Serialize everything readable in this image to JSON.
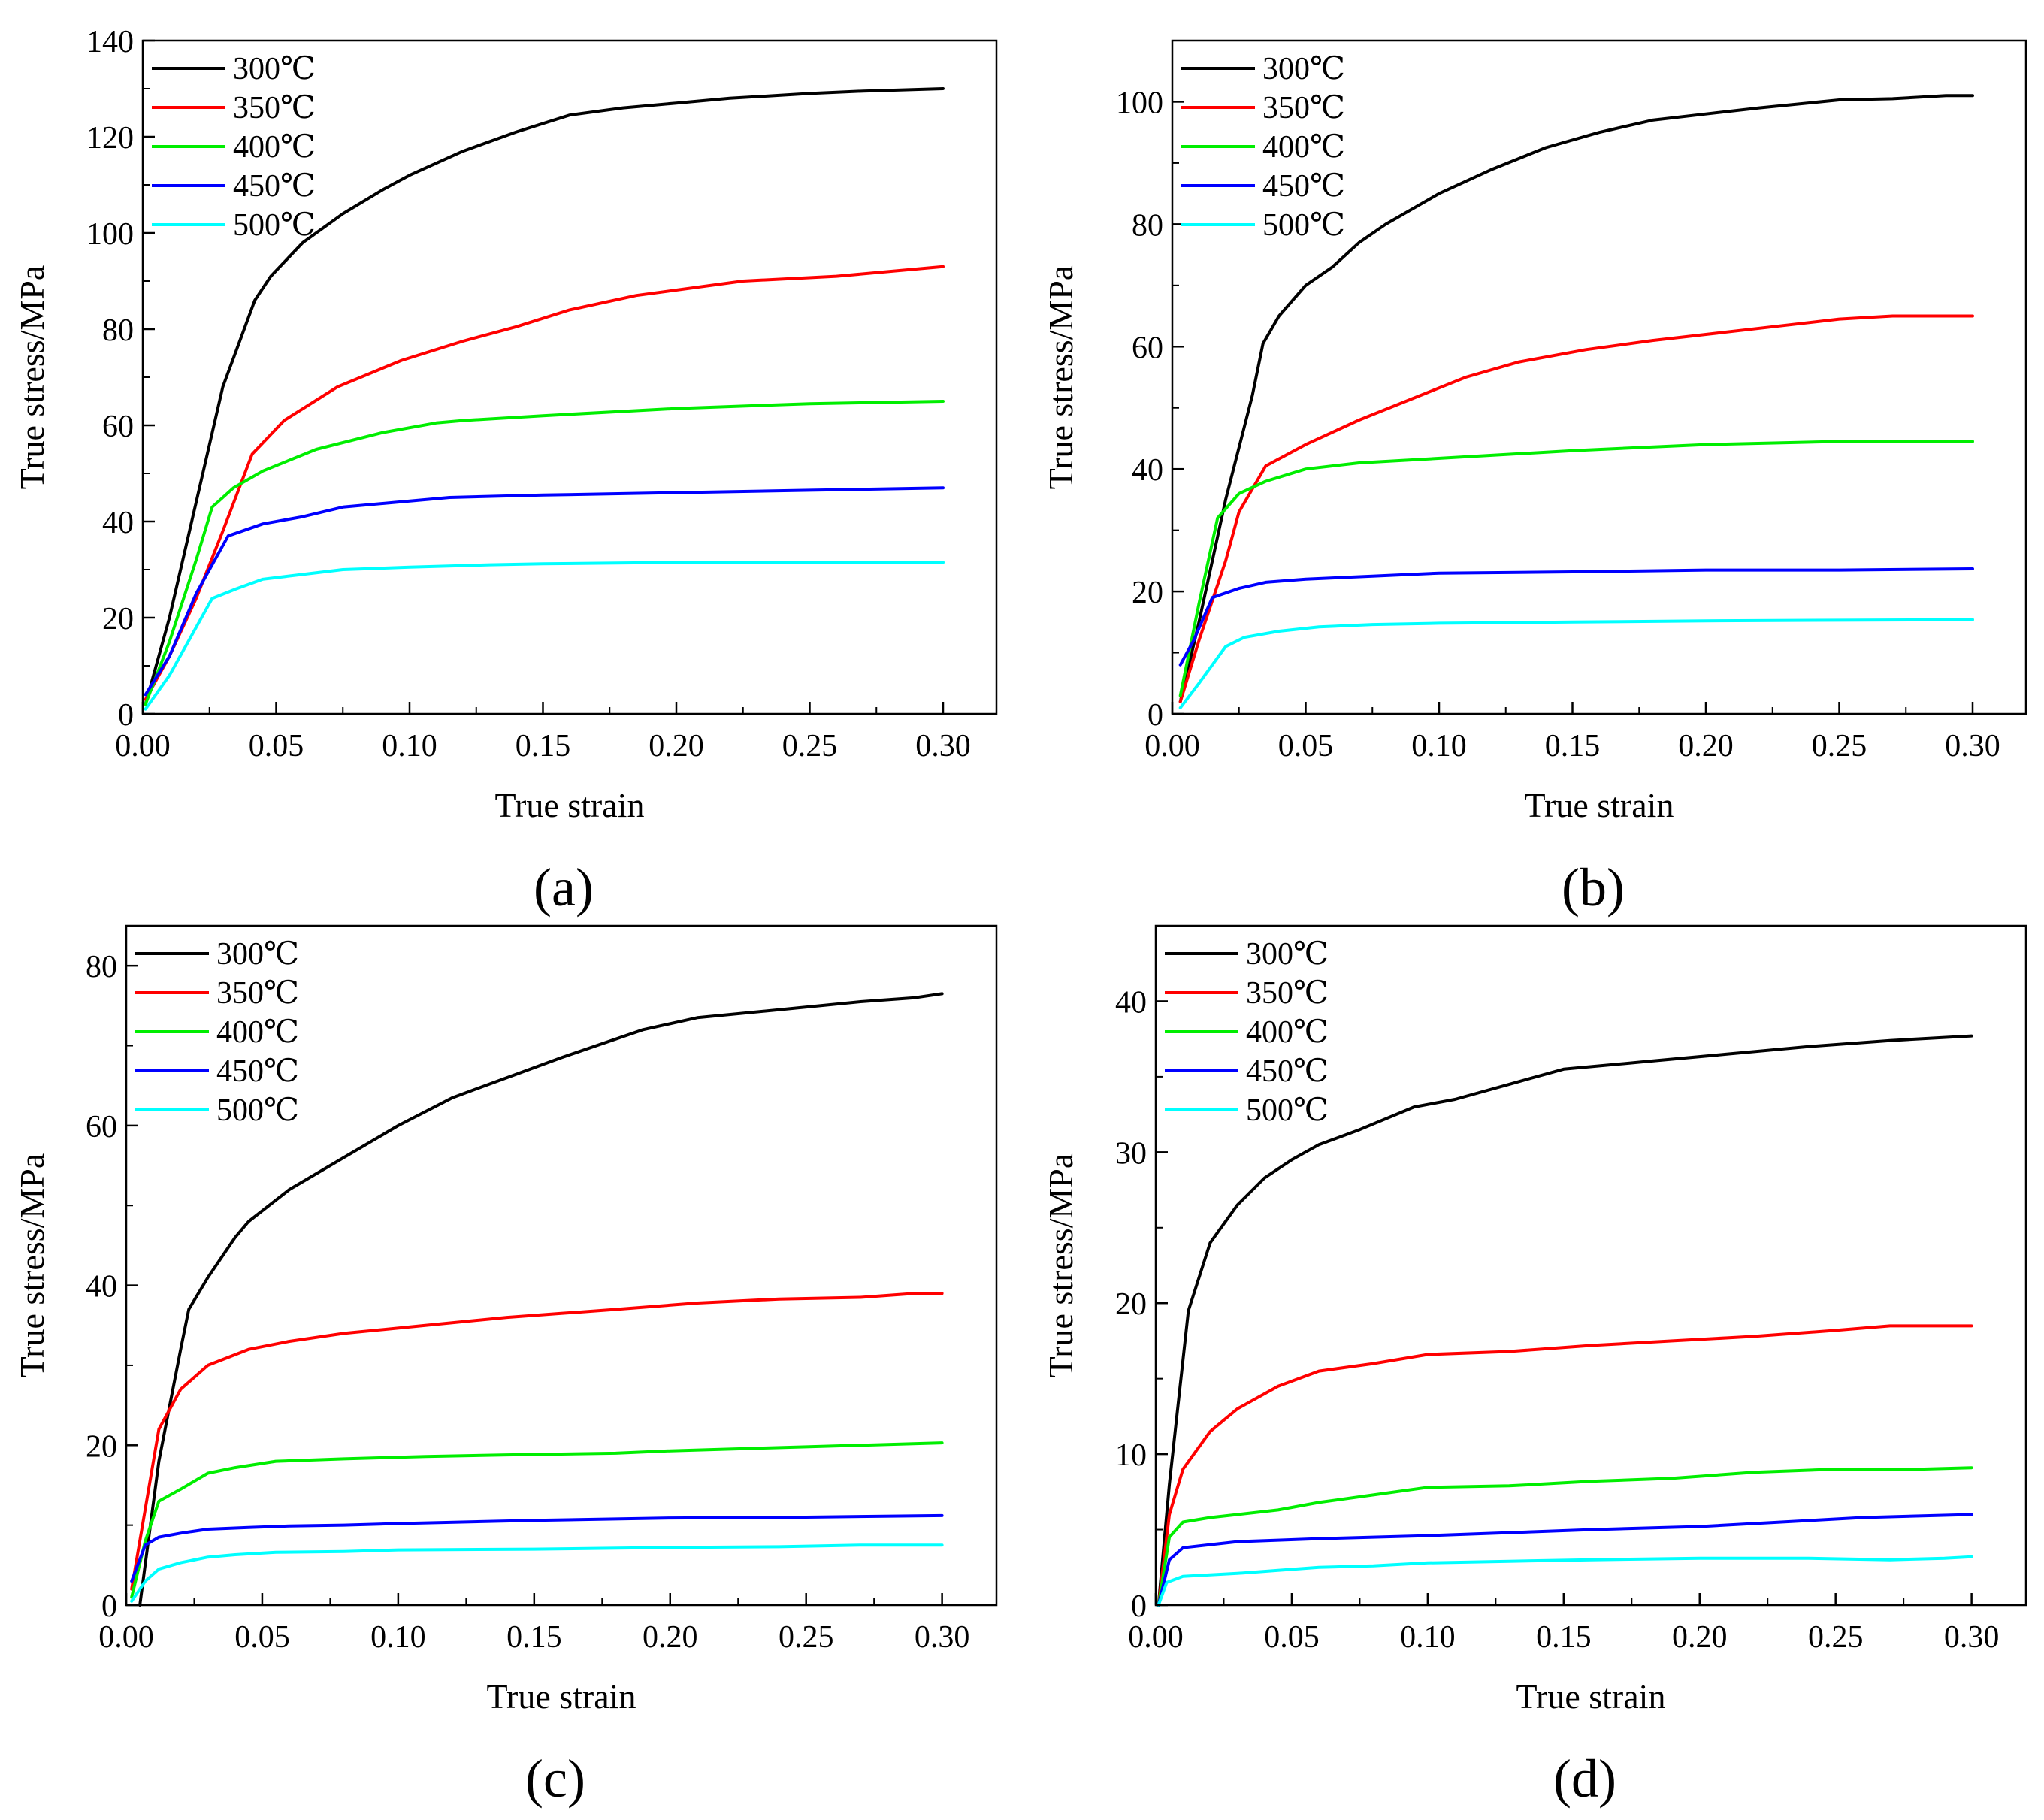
{
  "figure": {
    "series_colors": [
      "#000000",
      "#ff0000",
      "#00ee00",
      "#0000ff",
      "#00ffff"
    ]
  },
  "chart_data": [
    {
      "type": "line",
      "panel_label": "(a)",
      "xlabel": "True strain",
      "ylabel": "True stress/MPa",
      "xlim": [
        0,
        0.32
      ],
      "ylim": [
        0,
        140
      ],
      "xticks": [
        0,
        0.05,
        0.1,
        0.15,
        0.2,
        0.25,
        0.3
      ],
      "xtick_labels": [
        "0.00",
        "0.05",
        "0.10",
        "0.15",
        "0.20",
        "0.25",
        "0.30"
      ],
      "yticks": [
        0,
        20,
        40,
        60,
        80,
        100,
        120,
        140
      ],
      "ytick_labels": [
        "0",
        "20",
        "40",
        "60",
        "80",
        "100",
        "120",
        "140"
      ],
      "legend_position": "top-left",
      "series": [
        {
          "name": "300℃",
          "x": [
            0.001,
            0.01,
            0.02,
            0.03,
            0.038,
            0.042,
            0.048,
            0.06,
            0.075,
            0.09,
            0.1,
            0.12,
            0.14,
            0.16,
            0.18,
            0.2,
            0.22,
            0.25,
            0.27,
            0.3
          ],
          "y": [
            2,
            20,
            44,
            68,
            80,
            86,
            91,
            98,
            104,
            109,
            112,
            117,
            121,
            124.5,
            126,
            127,
            128,
            129,
            129.5,
            130
          ]
        },
        {
          "name": "350℃",
          "x": [
            0.001,
            0.01,
            0.02,
            0.03,
            0.041,
            0.053,
            0.073,
            0.097,
            0.12,
            0.14,
            0.16,
            0.185,
            0.225,
            0.26,
            0.3
          ],
          "y": [
            3,
            12,
            24,
            38,
            54,
            61,
            68,
            73.5,
            77.5,
            80.5,
            84,
            87,
            90,
            91,
            93
          ]
        },
        {
          "name": "400℃",
          "x": [
            0.001,
            0.01,
            0.02,
            0.026,
            0.034,
            0.045,
            0.065,
            0.09,
            0.11,
            0.12,
            0.15,
            0.2,
            0.25,
            0.3
          ],
          "y": [
            2,
            15,
            32,
            43,
            47,
            50.5,
            55,
            58.5,
            60.5,
            61,
            62,
            63.5,
            64.5,
            65
          ]
        },
        {
          "name": "450℃",
          "x": [
            0.001,
            0.01,
            0.02,
            0.032,
            0.045,
            0.06,
            0.075,
            0.095,
            0.115,
            0.15,
            0.2,
            0.25,
            0.3
          ],
          "y": [
            4,
            12,
            25,
            37,
            39.5,
            41,
            43,
            44,
            45,
            45.5,
            46,
            46.5,
            47
          ]
        },
        {
          "name": "500℃",
          "x": [
            0.001,
            0.01,
            0.02,
            0.026,
            0.035,
            0.045,
            0.06,
            0.075,
            0.1,
            0.13,
            0.15,
            0.2,
            0.25,
            0.3
          ],
          "y": [
            1,
            8,
            18,
            24,
            26,
            28,
            29,
            30,
            30.5,
            31,
            31.2,
            31.5,
            31.5,
            31.5
          ]
        }
      ]
    },
    {
      "type": "line",
      "panel_label": "(b)",
      "xlabel": "True strain",
      "ylabel": "True stress/MPa",
      "xlim": [
        0,
        0.32
      ],
      "ylim": [
        0,
        110
      ],
      "xticks": [
        0,
        0.05,
        0.1,
        0.15,
        0.2,
        0.25,
        0.3
      ],
      "xtick_labels": [
        "0.00",
        "0.05",
        "0.10",
        "0.15",
        "0.20",
        "0.25",
        "0.30"
      ],
      "yticks": [
        0,
        20,
        40,
        60,
        80,
        100
      ],
      "ytick_labels": [
        "0",
        "20",
        "40",
        "60",
        "80",
        "100"
      ],
      "legend_position": "top-left",
      "series": [
        {
          "name": "300℃",
          "x": [
            0.003,
            0.01,
            0.02,
            0.03,
            0.034,
            0.04,
            0.05,
            0.06,
            0.07,
            0.08,
            0.1,
            0.12,
            0.14,
            0.16,
            0.18,
            0.2,
            0.22,
            0.25,
            0.27,
            0.29,
            0.3
          ],
          "y": [
            2,
            15,
            35,
            52,
            60.5,
            65,
            70,
            73,
            77,
            80,
            85,
            89,
            92.5,
            95,
            97,
            98,
            99,
            100.3,
            100.5,
            101,
            101
          ]
        },
        {
          "name": "350℃",
          "x": [
            0.003,
            0.01,
            0.02,
            0.025,
            0.035,
            0.05,
            0.07,
            0.09,
            0.11,
            0.13,
            0.155,
            0.18,
            0.2,
            0.23,
            0.25,
            0.27,
            0.3
          ],
          "y": [
            2,
            12,
            25,
            33,
            40.5,
            44,
            48,
            51.5,
            55,
            57.5,
            59.5,
            61,
            62,
            63.5,
            64.5,
            65,
            65
          ]
        },
        {
          "name": "400℃",
          "x": [
            0.003,
            0.01,
            0.017,
            0.025,
            0.035,
            0.05,
            0.07,
            0.09,
            0.11,
            0.15,
            0.2,
            0.25,
            0.29,
            0.3
          ],
          "y": [
            3,
            18,
            32,
            36,
            38,
            40,
            41,
            41.5,
            42,
            43,
            44,
            44.5,
            44.5,
            44.5
          ]
        },
        {
          "name": "450℃",
          "x": [
            0.003,
            0.008,
            0.015,
            0.025,
            0.035,
            0.05,
            0.075,
            0.1,
            0.15,
            0.2,
            0.25,
            0.3
          ],
          "y": [
            8,
            12,
            19,
            20.5,
            21.5,
            22,
            22.5,
            23,
            23.2,
            23.5,
            23.5,
            23.7
          ]
        },
        {
          "name": "500℃",
          "x": [
            0.003,
            0.01,
            0.02,
            0.027,
            0.04,
            0.055,
            0.075,
            0.1,
            0.15,
            0.2,
            0.25,
            0.3
          ],
          "y": [
            1,
            5,
            11,
            12.5,
            13.5,
            14.2,
            14.6,
            14.8,
            15,
            15.2,
            15.3,
            15.4
          ]
        }
      ]
    },
    {
      "type": "line",
      "panel_label": "(c)",
      "xlabel": "True strain",
      "ylabel": "True stress/MPa",
      "xlim": [
        0,
        0.32
      ],
      "ylim": [
        0,
        85
      ],
      "xticks": [
        0,
        0.05,
        0.1,
        0.15,
        0.2,
        0.25,
        0.3
      ],
      "xtick_labels": [
        "0.00",
        "0.05",
        "0.10",
        "0.15",
        "0.20",
        "0.25",
        "0.30"
      ],
      "yticks": [
        0,
        20,
        40,
        60,
        80
      ],
      "ytick_labels": [
        "0",
        "20",
        "40",
        "60",
        "80"
      ],
      "legend_position": "top-left",
      "series": [
        {
          "name": "300℃",
          "x": [
            0.005,
            0.012,
            0.02,
            0.023,
            0.03,
            0.04,
            0.045,
            0.06,
            0.08,
            0.1,
            0.12,
            0.14,
            0.16,
            0.19,
            0.21,
            0.24,
            0.27,
            0.29,
            0.3
          ],
          "y": [
            0,
            18,
            32,
            37,
            41,
            46,
            48,
            52,
            56,
            60,
            63.5,
            66,
            68.5,
            72,
            73.5,
            74.5,
            75.5,
            76,
            76.5
          ]
        },
        {
          "name": "350℃",
          "x": [
            0.002,
            0.008,
            0.012,
            0.02,
            0.03,
            0.045,
            0.06,
            0.08,
            0.11,
            0.14,
            0.16,
            0.18,
            0.21,
            0.24,
            0.27,
            0.29,
            0.3
          ],
          "y": [
            2,
            14,
            22,
            27,
            30,
            32,
            33,
            34,
            35,
            36,
            36.5,
            37,
            37.8,
            38.3,
            38.5,
            39,
            39
          ]
        },
        {
          "name": "400℃",
          "x": [
            0.002,
            0.007,
            0.012,
            0.02,
            0.03,
            0.04,
            0.055,
            0.08,
            0.11,
            0.14,
            0.18,
            0.2,
            0.25,
            0.3
          ],
          "y": [
            1,
            8,
            13,
            14.5,
            16.5,
            17.2,
            18,
            18.3,
            18.6,
            18.8,
            19,
            19.3,
            19.8,
            20.3
          ]
        },
        {
          "name": "450℃",
          "x": [
            0.002,
            0.007,
            0.012,
            0.02,
            0.03,
            0.045,
            0.06,
            0.08,
            0.1,
            0.15,
            0.2,
            0.25,
            0.3
          ],
          "y": [
            3,
            7.5,
            8.5,
            9,
            9.5,
            9.7,
            9.9,
            10,
            10.2,
            10.6,
            10.9,
            11,
            11.2
          ]
        },
        {
          "name": "500℃",
          "x": [
            0.002,
            0.007,
            0.012,
            0.02,
            0.03,
            0.04,
            0.055,
            0.08,
            0.1,
            0.15,
            0.2,
            0.24,
            0.27,
            0.3
          ],
          "y": [
            0.5,
            3,
            4.5,
            5.3,
            6,
            6.3,
            6.6,
            6.7,
            6.9,
            7,
            7.2,
            7.3,
            7.5,
            7.5
          ]
        }
      ]
    },
    {
      "type": "line",
      "panel_label": "(d)",
      "xlabel": "True strain",
      "ylabel": "True stress/MPa",
      "xlim": [
        0,
        0.32
      ],
      "ylim": [
        0,
        45
      ],
      "xticks": [
        0,
        0.05,
        0.1,
        0.15,
        0.2,
        0.25,
        0.3
      ],
      "xtick_labels": [
        "0.00",
        "0.05",
        "0.10",
        "0.15",
        "0.20",
        "0.25",
        "0.30"
      ],
      "yticks": [
        0,
        10,
        20,
        30,
        40
      ],
      "ytick_labels": [
        "0",
        "10",
        "20",
        "30",
        "40"
      ],
      "legend_position": "top-left",
      "series": [
        {
          "name": "300℃",
          "x": [
            0.001,
            0.005,
            0.012,
            0.02,
            0.03,
            0.04,
            0.05,
            0.06,
            0.075,
            0.095,
            0.11,
            0.13,
            0.15,
            0.18,
            0.21,
            0.24,
            0.27,
            0.3
          ],
          "y": [
            0,
            8,
            19.5,
            24,
            26.5,
            28.3,
            29.5,
            30.5,
            31.5,
            33,
            33.5,
            34.5,
            35.5,
            36,
            36.5,
            37,
            37.4,
            37.7
          ]
        },
        {
          "name": "350℃",
          "x": [
            0.001,
            0.005,
            0.01,
            0.02,
            0.03,
            0.045,
            0.06,
            0.08,
            0.1,
            0.13,
            0.16,
            0.19,
            0.22,
            0.25,
            0.27,
            0.3
          ],
          "y": [
            0,
            6,
            9,
            11.5,
            13,
            14.5,
            15.5,
            16,
            16.6,
            16.8,
            17.2,
            17.5,
            17.8,
            18.2,
            18.5,
            18.5
          ]
        },
        {
          "name": "400℃",
          "x": [
            0.001,
            0.005,
            0.01,
            0.02,
            0.03,
            0.045,
            0.06,
            0.08,
            0.1,
            0.13,
            0.16,
            0.19,
            0.22,
            0.25,
            0.28,
            0.3
          ],
          "y": [
            0,
            4.5,
            5.5,
            5.8,
            6,
            6.3,
            6.8,
            7.3,
            7.8,
            7.9,
            8.2,
            8.4,
            8.8,
            9,
            9,
            9.1
          ]
        },
        {
          "name": "450℃",
          "x": [
            0.001,
            0.005,
            0.01,
            0.02,
            0.03,
            0.045,
            0.06,
            0.08,
            0.1,
            0.13,
            0.16,
            0.2,
            0.23,
            0.26,
            0.3
          ],
          "y": [
            0,
            3,
            3.8,
            4,
            4.2,
            4.3,
            4.4,
            4.5,
            4.6,
            4.8,
            5,
            5.2,
            5.5,
            5.8,
            6
          ]
        },
        {
          "name": "500℃",
          "x": [
            0.001,
            0.004,
            0.01,
            0.02,
            0.03,
            0.045,
            0.06,
            0.08,
            0.1,
            0.13,
            0.16,
            0.2,
            0.24,
            0.27,
            0.29,
            0.3
          ],
          "y": [
            0,
            1.5,
            1.9,
            2,
            2.1,
            2.3,
            2.5,
            2.6,
            2.8,
            2.9,
            3,
            3.1,
            3.1,
            3,
            3.1,
            3.2
          ]
        }
      ]
    }
  ]
}
